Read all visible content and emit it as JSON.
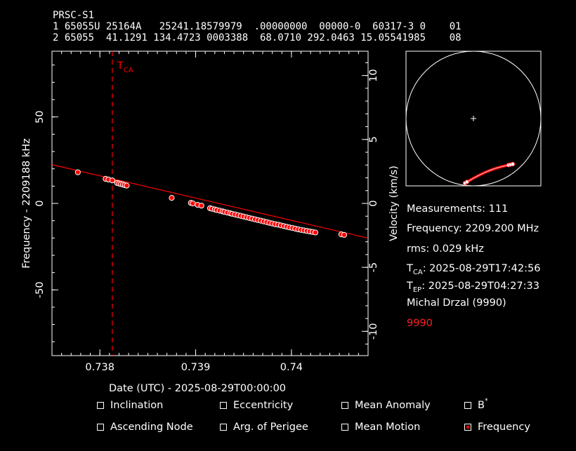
{
  "header": {
    "name": "PRSC-S1",
    "line1": "1 65055U 25164A   25241.18579979  .00000000  00000-0  60317-3 0    01",
    "line2": "2 65055  41.1291 134.4723 0003388  68.0710 292.0463 15.05541985    08"
  },
  "chart_data": {
    "type": "scatter",
    "xlabel": "Date (UTC) - 2025-08-29T00:00:00",
    "ylabel": "Frequency - 2209188 kHz",
    "y2label": "Velocity (km/s)",
    "xlim": [
      0.7375,
      0.7408
    ],
    "ylim": [
      -88,
      88
    ],
    "y2lim": [
      -11.9,
      11.9
    ],
    "xticks": [
      0.738,
      0.739,
      0.74
    ],
    "xtick_labels": [
      "0.738",
      "0.739",
      "0.74"
    ],
    "yticks": [
      -50,
      0,
      50
    ],
    "ytick_labels": [
      "-50",
      "0",
      "50"
    ],
    "y2ticks": [
      -10,
      -5,
      0,
      5,
      10
    ],
    "y2tick_labels": [
      "-10",
      "-5",
      "0",
      "5",
      "10"
    ],
    "tca_x": 0.73813,
    "tca_label": "T",
    "tca_sub": "CA",
    "fit_line": {
      "x": [
        0.7375,
        0.7408
      ],
      "y": [
        22.4,
        -20.1
      ]
    },
    "points": {
      "x": [
        0.73777,
        0.73806,
        0.73809,
        0.73813,
        0.73818,
        0.7382,
        0.73822,
        0.73824,
        0.73826,
        0.73828,
        0.73875,
        0.73895,
        0.73897,
        0.73902,
        0.73906,
        0.73915,
        0.73917,
        0.7392,
        0.73922,
        0.73925,
        0.73928,
        0.7393,
        0.73933,
        0.73936,
        0.73938,
        0.73941,
        0.73944,
        0.73947,
        0.7395,
        0.73953,
        0.73956,
        0.73959,
        0.73962,
        0.73965,
        0.73968,
        0.73971,
        0.73974,
        0.73977,
        0.7398,
        0.73983,
        0.73986,
        0.73989,
        0.73992,
        0.73995,
        0.73998,
        0.74001,
        0.74004,
        0.74007,
        0.7401,
        0.74013,
        0.74016,
        0.74019,
        0.74022,
        0.74025,
        0.74052,
        0.74055
      ],
      "y": [
        18.0,
        14.2,
        13.8,
        13.3,
        11.8,
        11.5,
        11.2,
        10.9,
        10.6,
        10.3,
        3.2,
        0.3,
        0.0,
        -0.8,
        -1.3,
        -2.8,
        -3.1,
        -3.5,
        -3.8,
        -4.2,
        -4.6,
        -4.9,
        -5.3,
        -5.7,
        -6.0,
        -6.4,
        -6.8,
        -7.2,
        -7.6,
        -8.0,
        -8.4,
        -8.8,
        -9.2,
        -9.6,
        -10.0,
        -10.4,
        -10.8,
        -11.2,
        -11.6,
        -12.0,
        -12.3,
        -12.7,
        -13.1,
        -13.5,
        -13.9,
        -14.2,
        -14.6,
        -15.0,
        -15.3,
        -15.6,
        -15.9,
        -16.2,
        -16.5,
        -16.8,
        -17.9,
        -18.2
      ]
    }
  },
  "sky_plot": {
    "track_points": 24
  },
  "info": {
    "measurements": "Measurements: 111",
    "frequency": "Frequency: 2209.200 MHz",
    "rms": "rms: 0.029 kHz",
    "tca_label": "T",
    "tca_sub": "CA",
    "tca_value": ": 2025-08-29T17:42:56",
    "tep_label": "T",
    "tep_sub": "EP",
    "tep_value": ": 2025-08-29T04:27:33",
    "observer": "Michal Drzal (9990)",
    "site_id": "9990"
  },
  "fit_options": [
    {
      "label": "Inclination",
      "checked": false
    },
    {
      "label": "Eccentricity",
      "checked": false
    },
    {
      "label": "Mean Anomaly",
      "checked": false
    },
    {
      "label": "B",
      "sup": "*",
      "checked": false
    },
    {
      "label": "Ascending Node",
      "checked": false
    },
    {
      "label": "Arg. of Perigee",
      "checked": false
    },
    {
      "label": "Mean Motion",
      "checked": false
    },
    {
      "label": "Frequency",
      "checked": true
    }
  ],
  "colors": {
    "data": "#ff0000",
    "axes": "#ffffff",
    "background": "#000000"
  }
}
